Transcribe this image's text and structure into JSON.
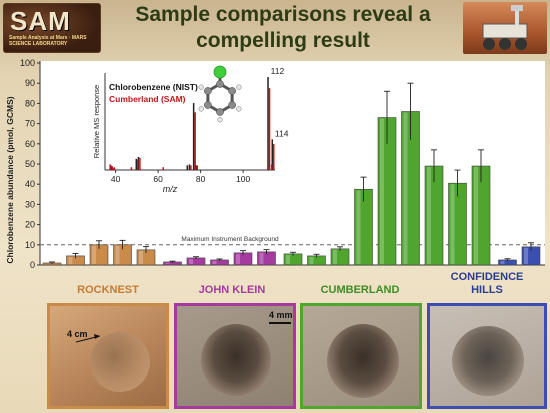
{
  "header": {
    "logo_text": "SAM",
    "logo_subtext": "Sample Analysis at Mars · MARS SCIENCE LABORATORY",
    "title_line1": "Sample comparisons reveal a",
    "title_line2": "compelling result"
  },
  "colors": {
    "rocknest": "#c98a4a",
    "john_klein": "#a53aa0",
    "cumberland": "#4fa52e",
    "confidence_hills": "#3a4fb0",
    "title_text": "#2d3c15"
  },
  "chart_data": {
    "type": "bar",
    "ylabel": "Chlorobenzene abundance (pmol, GCMS)",
    "ylim": [
      0,
      100
    ],
    "yticks": [
      0,
      10,
      20,
      30,
      40,
      50,
      60,
      70,
      80,
      90,
      100
    ],
    "background_line": {
      "value": 10,
      "label": "Maximum Instrument  Background"
    },
    "groups": [
      {
        "name": "ROCKNEST",
        "color": "#c98a4a",
        "values": [
          1,
          4.5,
          10,
          10,
          7.5
        ],
        "errors": [
          0.5,
          1.2,
          2,
          2.2,
          1.6
        ]
      },
      {
        "name": "JOHN KLEIN",
        "color": "#a53aa0",
        "values": [
          1.5,
          3.5,
          2.5,
          6,
          6.5
        ],
        "errors": [
          0.4,
          0.6,
          0.5,
          1.1,
          1.1
        ]
      },
      {
        "name": "CUMBERLAND",
        "color": "#4fa52e",
        "values": [
          5.5,
          4.5,
          8,
          37.5,
          73,
          76,
          49,
          40.5,
          49
        ],
        "errors": [
          0.8,
          0.8,
          1,
          6,
          13,
          14,
          8,
          6.5,
          8
        ]
      },
      {
        "name": "CONFIDENCE HILLS",
        "color": "#3a4fb0",
        "values": [
          2.5,
          9
        ],
        "errors": [
          0.6,
          2
        ]
      }
    ],
    "inset": {
      "legend_nist": "Chlorobenzene (NIST)",
      "legend_sam": "Cumberland (SAM)",
      "ylabel": "Relative MS response",
      "xlabel": "m/z",
      "xticks": [
        40,
        60,
        80,
        100
      ],
      "xlim": [
        35,
        115
      ],
      "peak_labels": [
        {
          "mz": 112,
          "label": "112"
        },
        {
          "mz": 114,
          "label": "114"
        }
      ],
      "peaks_nist": [
        [
          38,
          0.05
        ],
        [
          39,
          0.02
        ],
        [
          50,
          0.12
        ],
        [
          51,
          0.14
        ],
        [
          74,
          0.05
        ],
        [
          75,
          0.06
        ],
        [
          77,
          0.72
        ],
        [
          78,
          0.05
        ],
        [
          112,
          1.0
        ],
        [
          114,
          0.33
        ]
      ],
      "peaks_sam": [
        [
          37,
          0.06
        ],
        [
          38,
          0.04
        ],
        [
          39,
          0.03
        ],
        [
          47,
          0.03
        ],
        [
          50,
          0.11
        ],
        [
          51,
          0.13
        ],
        [
          62,
          0.03
        ],
        [
          75,
          0.05
        ],
        [
          77,
          0.62
        ],
        [
          78,
          0.05
        ],
        [
          112,
          0.88
        ],
        [
          113,
          0.06
        ],
        [
          114,
          0.28
        ]
      ]
    }
  },
  "samples": [
    {
      "key": "rocknest",
      "label": "ROCKNEST",
      "annotation": "4 cm"
    },
    {
      "key": "john_klein",
      "label": "JOHN KLEIN",
      "annotation": "4 mm"
    },
    {
      "key": "cumberland",
      "label": "CUMBERLAND"
    },
    {
      "key": "confidence_hills",
      "label_line1": "CONFIDENCE",
      "label_line2": "HILLS"
    }
  ]
}
